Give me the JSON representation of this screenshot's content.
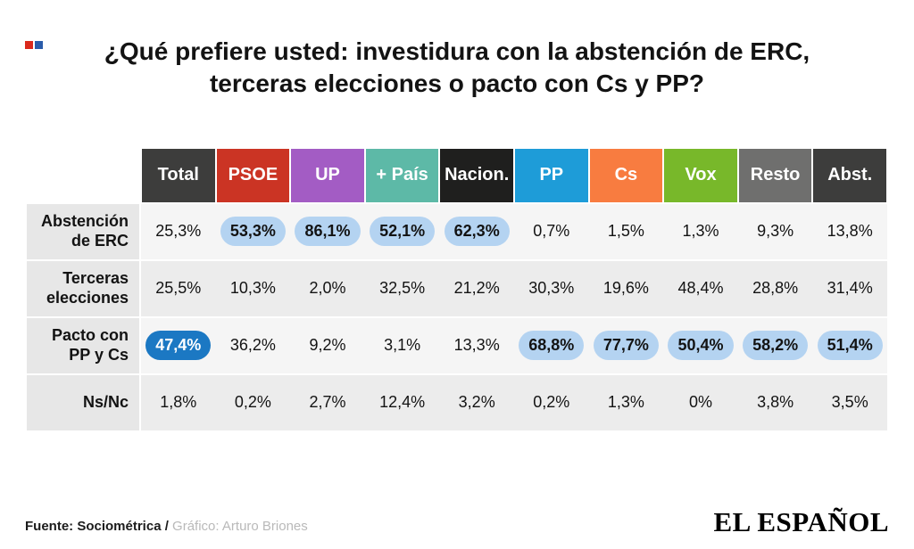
{
  "brand": {
    "mark_colors": {
      "red": "#da291c",
      "blue": "#2a5caa"
    }
  },
  "title": {
    "line1": "¿Qué prefiere usted: investidura con la abstención de ERC,",
    "line2": "terceras elecciones o pacto con Cs y PP?"
  },
  "chart_data": {
    "type": "table",
    "title": "¿Qué prefiere usted: investidura con la abstención de ERC, terceras elecciones o pacto con Cs y PP?",
    "columns": [
      "Total",
      "PSOE",
      "UP",
      "+ País",
      "Nacion.",
      "PP",
      "Cs",
      "Vox",
      "Resto",
      "Abst."
    ],
    "row_labels": [
      "Abstención de ERC",
      "Terceras elecciones",
      "Pacto con PP y Cs",
      "Ns/Nc"
    ],
    "values_pct": [
      [
        25.3,
        53.3,
        86.1,
        52.1,
        62.3,
        0.7,
        1.5,
        1.3,
        9.3,
        13.8
      ],
      [
        25.5,
        10.3,
        2.0,
        32.5,
        21.2,
        30.3,
        19.6,
        48.4,
        28.8,
        31.4
      ],
      [
        47.4,
        36.2,
        9.2,
        3.1,
        13.3,
        68.8,
        77.7,
        50.4,
        58.2,
        51.4
      ],
      [
        1.8,
        0.2,
        2.7,
        12.4,
        3.2,
        0.2,
        1.3,
        0,
        3.8,
        3.5
      ]
    ],
    "highlight_note": "Highest option per column is highlighted with a blue pill"
  },
  "table": {
    "columns": [
      {
        "key": "total",
        "label": "Total",
        "color": "#3d3d3c"
      },
      {
        "key": "psoe",
        "label": "PSOE",
        "color": "#cb3424"
      },
      {
        "key": "up",
        "label": "UP",
        "color": "#a35cc4"
      },
      {
        "key": "pais",
        "label": "+ País",
        "color": "#5db9a7"
      },
      {
        "key": "nacion",
        "label": "Nacion.",
        "color": "#1f1f1e"
      },
      {
        "key": "pp",
        "label": "PP",
        "color": "#1e9cd8"
      },
      {
        "key": "cs",
        "label": "Cs",
        "color": "#f87c40"
      },
      {
        "key": "vox",
        "label": "Vox",
        "color": "#78b82a"
      },
      {
        "key": "resto",
        "label": "Resto",
        "color": "#6f6f6e"
      },
      {
        "key": "abst",
        "label": "Abst.",
        "color": "#3d3d3c"
      }
    ],
    "rows": [
      {
        "key": "abstencion-erc",
        "label": "Abstención de ERC",
        "label_lines": [
          "Abstención",
          "de ERC"
        ],
        "cells": [
          {
            "value": "25,3%"
          },
          {
            "value": "53,3%",
            "highlight": "pill"
          },
          {
            "value": "86,1%",
            "highlight": "pill"
          },
          {
            "value": "52,1%",
            "highlight": "pill"
          },
          {
            "value": "62,3%",
            "highlight": "pill"
          },
          {
            "value": "0,7%"
          },
          {
            "value": "1,5%"
          },
          {
            "value": "1,3%"
          },
          {
            "value": "9,3%"
          },
          {
            "value": "13,8%"
          }
        ]
      },
      {
        "key": "terceras-elecciones",
        "label": "Terceras elecciones",
        "label_lines": [
          "Terceras",
          "elecciones"
        ],
        "cells": [
          {
            "value": "25,5%"
          },
          {
            "value": "10,3%"
          },
          {
            "value": "2,0%"
          },
          {
            "value": "32,5%"
          },
          {
            "value": "21,2%"
          },
          {
            "value": "30,3%"
          },
          {
            "value": "19,6%"
          },
          {
            "value": "48,4%"
          },
          {
            "value": "28,8%"
          },
          {
            "value": "31,4%"
          }
        ]
      },
      {
        "key": "pacto-pp-cs",
        "label": "Pacto con PP y Cs",
        "label_lines": [
          "Pacto con",
          "PP y Cs"
        ],
        "cells": [
          {
            "value": "47,4%",
            "highlight": "solid"
          },
          {
            "value": "36,2%"
          },
          {
            "value": "9,2%"
          },
          {
            "value": "3,1%"
          },
          {
            "value": "13,3%"
          },
          {
            "value": "68,8%",
            "highlight": "pill"
          },
          {
            "value": "77,7%",
            "highlight": "pill"
          },
          {
            "value": "50,4%",
            "highlight": "pill"
          },
          {
            "value": "58,2%",
            "highlight": "pill"
          },
          {
            "value": "51,4%",
            "highlight": "pill"
          }
        ]
      },
      {
        "key": "ns-nc",
        "label": "Ns/Nc",
        "label_lines": [
          "Ns/Nc"
        ],
        "cells": [
          {
            "value": "1,8%"
          },
          {
            "value": "0,2%"
          },
          {
            "value": "2,7%"
          },
          {
            "value": "12,4%"
          },
          {
            "value": "3,2%"
          },
          {
            "value": "0,2%"
          },
          {
            "value": "1,3%"
          },
          {
            "value": "0%"
          },
          {
            "value": "3,8%"
          },
          {
            "value": "3,5%"
          }
        ]
      }
    ],
    "highlight_colors": {
      "pill_bg": "#b4d3f1",
      "solid_bg": "#1b78c3",
      "solid_text": "#ffffff"
    }
  },
  "footer": {
    "source": "Fuente: Sociométrica /",
    "credit": " Gráfico: Arturo Briones",
    "logo": "EL ESPAÑOL"
  }
}
